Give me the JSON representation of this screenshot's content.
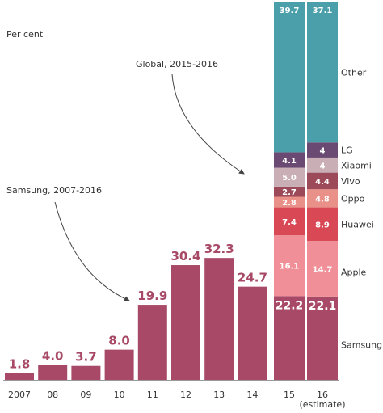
{
  "unit_label": "Per cent",
  "annotations": {
    "global": "Global, 2015-2016",
    "samsung": "Samsung, 2007-2016"
  },
  "chart_data": {
    "type": "bar",
    "ylabel": "Per cent",
    "ylim": [
      0,
      100
    ],
    "samsung_bars": {
      "color": "#a84a67",
      "categories": [
        "2007",
        "08",
        "09",
        "10",
        "11",
        "12",
        "13",
        "14"
      ],
      "values": [
        1.8,
        4.0,
        3.7,
        8.0,
        19.9,
        30.4,
        32.3,
        24.7
      ],
      "labels": [
        "1.8",
        "4.0",
        "3.7",
        "8.0",
        "19.9",
        "30.4",
        "32.3",
        "24.7"
      ]
    },
    "stacked": {
      "categories": [
        "15",
        "16 (estimate)"
      ],
      "category_lines": [
        [
          "15"
        ],
        [
          "16",
          "(estimate)"
        ]
      ],
      "series": [
        {
          "name": "Samsung",
          "color": "#a84a67",
          "values": [
            22.2,
            22.1
          ],
          "labels": [
            "22.2",
            "22.1"
          ]
        },
        {
          "name": "Apple",
          "color": "#f08f97",
          "values": [
            16.1,
            14.7
          ],
          "labels": [
            "16.1",
            "14.7"
          ]
        },
        {
          "name": "Huawei",
          "color": "#d84855",
          "values": [
            7.4,
            8.9
          ],
          "labels": [
            "7.4",
            "8.9"
          ]
        },
        {
          "name": "Oppo",
          "color": "#e99088",
          "values": [
            2.8,
            4.8
          ],
          "labels": [
            "2.8",
            "4.8"
          ]
        },
        {
          "name": "Vivo",
          "color": "#9c4a5a",
          "values": [
            2.7,
            4.4
          ],
          "labels": [
            "2.7",
            "4.4"
          ]
        },
        {
          "name": "Xiaomi",
          "color": "#c9aeb5",
          "values": [
            5.0,
            4
          ],
          "labels": [
            "5.0",
            "4"
          ]
        },
        {
          "name": "LG",
          "color": "#6a4a73",
          "values": [
            4.1,
            4
          ],
          "labels": [
            "4.1",
            "4"
          ]
        },
        {
          "name": "Other",
          "color": "#4a9faa",
          "values": [
            39.7,
            37.1
          ],
          "labels": [
            "39.7",
            "37.1"
          ]
        }
      ]
    }
  }
}
